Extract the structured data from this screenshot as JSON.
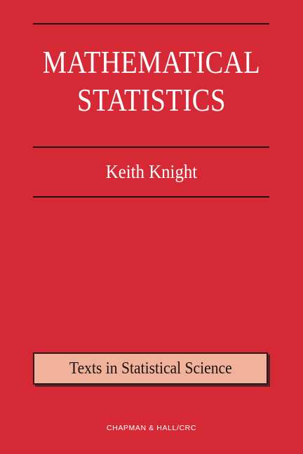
{
  "cover": {
    "title_line_1": "MATHEMATICAL",
    "title_line_2": "STATISTICS",
    "author": "Keith Knight",
    "series": "Texts in Statistical Science",
    "publisher": "CHAPMAN & HALL/CRC"
  },
  "colors": {
    "background": "#d52a36",
    "series_box": "#f1b29c",
    "rules": "#1a1010",
    "title_text": "#ffffff"
  }
}
